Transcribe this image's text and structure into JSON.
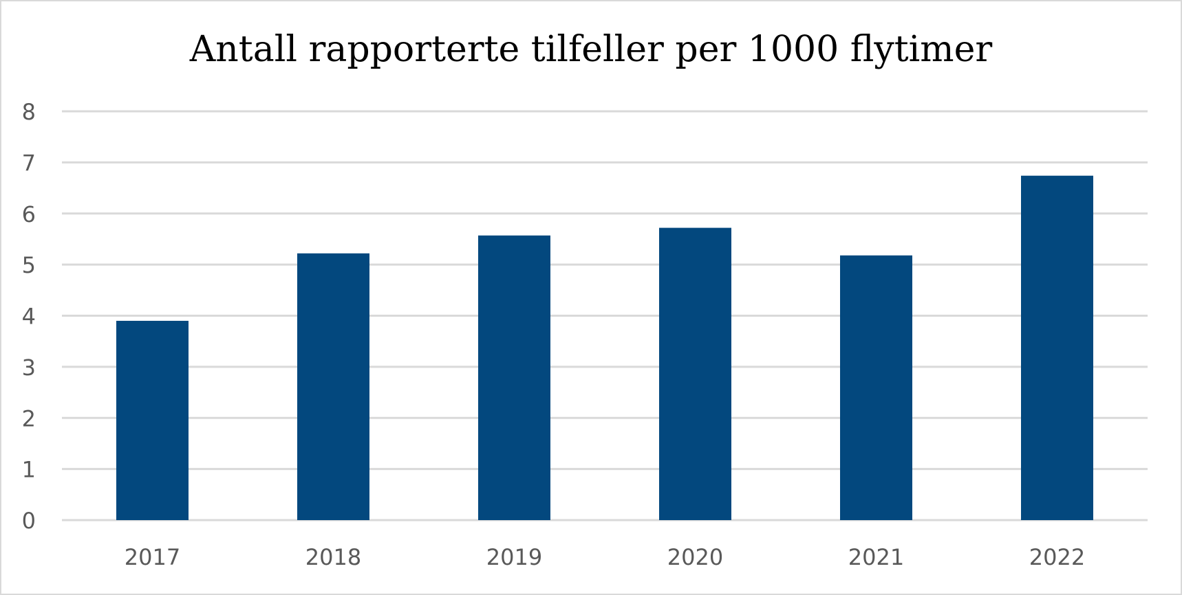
{
  "chart_data": {
    "type": "bar",
    "title": "Antall rapporterte tilfeller per 1000 flytimer",
    "categories": [
      "2017",
      "2018",
      "2019",
      "2020",
      "2021",
      "2022"
    ],
    "values": [
      3.9,
      5.22,
      5.57,
      5.72,
      5.18,
      6.74
    ],
    "ylim": [
      0,
      8
    ],
    "yticks": [
      "0",
      "1",
      "2",
      "3",
      "4",
      "5",
      "6",
      "7",
      "8"
    ],
    "xlabel": "",
    "ylabel": "",
    "grid": true,
    "legend": "none",
    "bar_color": "#03487E",
    "grid_color": "#D9D9D9",
    "tick_color": "#595959"
  }
}
